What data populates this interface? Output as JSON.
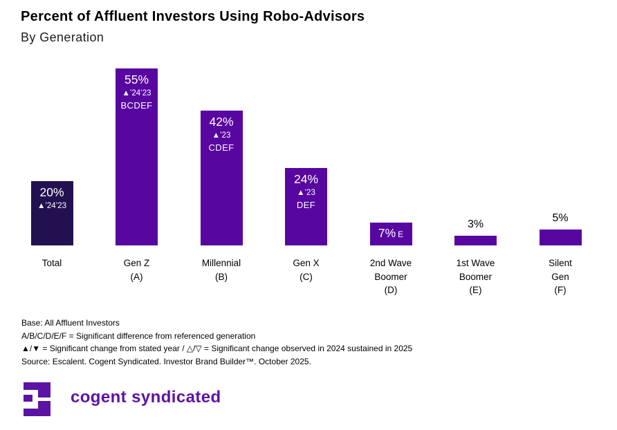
{
  "header": {
    "title": "Percent of Affluent Investors Using Robo-Advisors",
    "subtitle": "By Generation"
  },
  "chart_data": {
    "type": "bar",
    "title": "Percent of Affluent Investors Using Robo-Advisors",
    "subtitle": "By Generation",
    "unit": "%",
    "ylim": [
      0,
      60
    ],
    "grid": false,
    "legend": "none",
    "categories": [
      "Total",
      "Gen Z (A)",
      "Millennial (B)",
      "Gen X (C)",
      "2nd Wave Boomer (D)",
      "1st Wave Boomer (E)",
      "Silent Gen (F)"
    ],
    "values": [
      20,
      55,
      42,
      24,
      7,
      3,
      5
    ],
    "bars": [
      {
        "category_lines": [
          "Total"
        ],
        "value": 20,
        "value_label": "20%",
        "change_label": "▲’24’23",
        "sig_letters": "",
        "label_position": "inside",
        "color": "#231050"
      },
      {
        "category_lines": [
          "Gen Z",
          "(A)"
        ],
        "value": 55,
        "value_label": "55%",
        "change_label": "▲’24’23",
        "sig_letters": "BCDEF",
        "label_position": "inside",
        "color": "#5806a0"
      },
      {
        "category_lines": [
          "Millennial",
          "(B)"
        ],
        "value": 42,
        "value_label": "42%",
        "change_label": "▲’23",
        "sig_letters": "CDEF",
        "label_position": "inside",
        "color": "#5806a0"
      },
      {
        "category_lines": [
          "Gen X",
          "(C)"
        ],
        "value": 24,
        "value_label": "24%",
        "change_label": "▲’23",
        "sig_letters": "DEF",
        "label_position": "inside",
        "color": "#5806a0"
      },
      {
        "category_lines": [
          "2nd Wave",
          "Boomer",
          "(D)"
        ],
        "value": 7,
        "value_label": "7%",
        "sig_letters_inline": "E",
        "label_position": "inside-right",
        "color": "#5806a0"
      },
      {
        "category_lines": [
          "1st Wave",
          "Boomer",
          "(E)"
        ],
        "value": 3,
        "value_label": "3%",
        "label_position": "above",
        "color": "#5806a0"
      },
      {
        "category_lines": [
          "Silent",
          "Gen",
          "(F)"
        ],
        "value": 5,
        "value_label": "5%",
        "label_position": "above",
        "color": "#5806a0"
      }
    ]
  },
  "footnotes": {
    "line1": "Base: All Affluent Investors",
    "line2": "A/B/C/D/E/F = Significant difference from referenced generation",
    "line3": "▲/▼ = Significant change from stated year / △/▽ = Significant change observed in 2024 sustained in 2025",
    "line4": "Source: Escalent. Cogent Syndicated. Investor Brand Builder™. October 2025."
  },
  "branding": {
    "logo_text": "cogent syndicated",
    "logo_color": "#5c13a4"
  },
  "colors": {
    "bar_purple": "#5806a0",
    "bar_dark_total": "#231050",
    "background": "#ffffff",
    "text": "#000000"
  }
}
